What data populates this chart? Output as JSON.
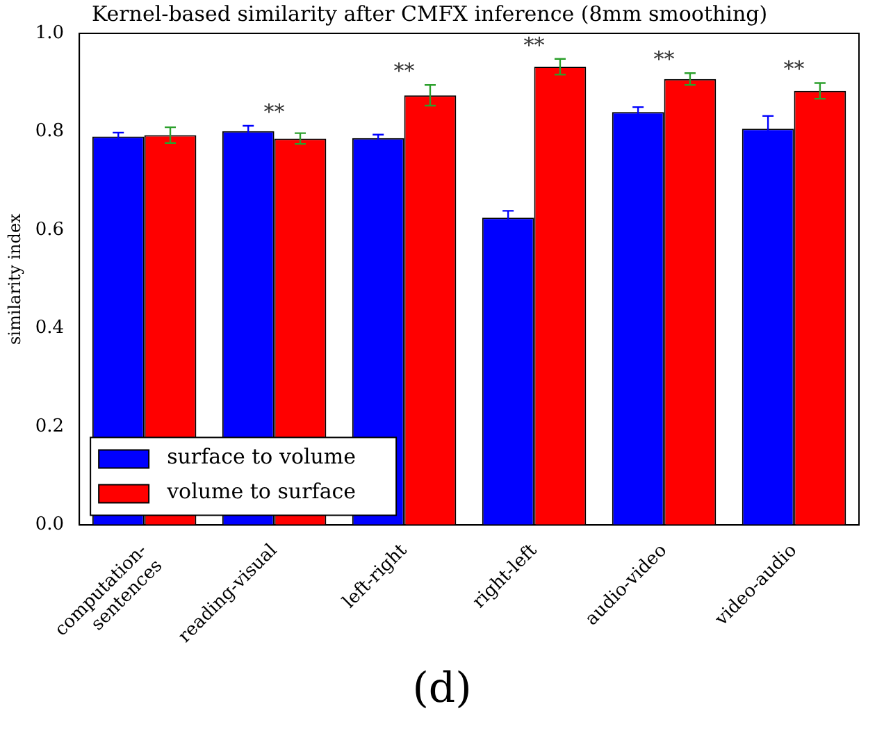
{
  "chart_data": {
    "type": "bar",
    "title": "Kernel-based similarity after CMFX inference (8mm smoothing)",
    "ylabel": "similarity index",
    "categories": [
      "computation-\nsentences",
      "reading-visual",
      "left-right",
      "right-left",
      "audio-video",
      "video-audio"
    ],
    "series": [
      {
        "name": "surface to volume",
        "color": "#0000ff",
        "values": [
          0.79,
          0.801,
          0.787,
          0.625,
          0.84,
          0.806
        ],
        "errors": [
          0.008,
          0.011,
          0.007,
          0.014,
          0.01,
          0.026
        ]
      },
      {
        "name": "volume to surface",
        "color": "#ff0000",
        "values": [
          0.793,
          0.786,
          0.874,
          0.932,
          0.907,
          0.883
        ],
        "errors": [
          0.016,
          0.011,
          0.021,
          0.016,
          0.012,
          0.016
        ]
      }
    ],
    "ylim": [
      0,
      1
    ],
    "yticks": [
      {
        "value": 0,
        "label": "0.0"
      },
      0.2,
      0.4,
      0.6,
      0.8,
      {
        "value": 1,
        "label": "1.0"
      }
    ],
    "grid": false,
    "legend": "bottom left",
    "annotations": [
      "**",
      "**",
      "**",
      "**",
      "**",
      "(d)"
    ]
  }
}
